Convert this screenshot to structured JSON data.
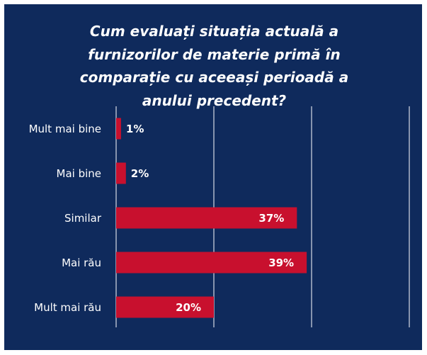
{
  "chart_data": {
    "type": "bar",
    "orientation": "horizontal",
    "title": "Cum evaluați situația actuală a furnizorilor de materie primă în comparație cu aceeași perioadă a anului precedent?",
    "categories": [
      "Mult mai bine",
      "Mai bine",
      "Similar",
      "Mai rău",
      "Mult mai rău"
    ],
    "values": [
      1,
      2,
      37,
      39,
      20
    ],
    "value_labels": [
      "1%",
      "2%",
      "37%",
      "39%",
      "20%"
    ],
    "color": "#c8102e",
    "xlim": [
      0,
      60
    ],
    "xticks": [
      0,
      20,
      40,
      60
    ],
    "grid": true
  }
}
